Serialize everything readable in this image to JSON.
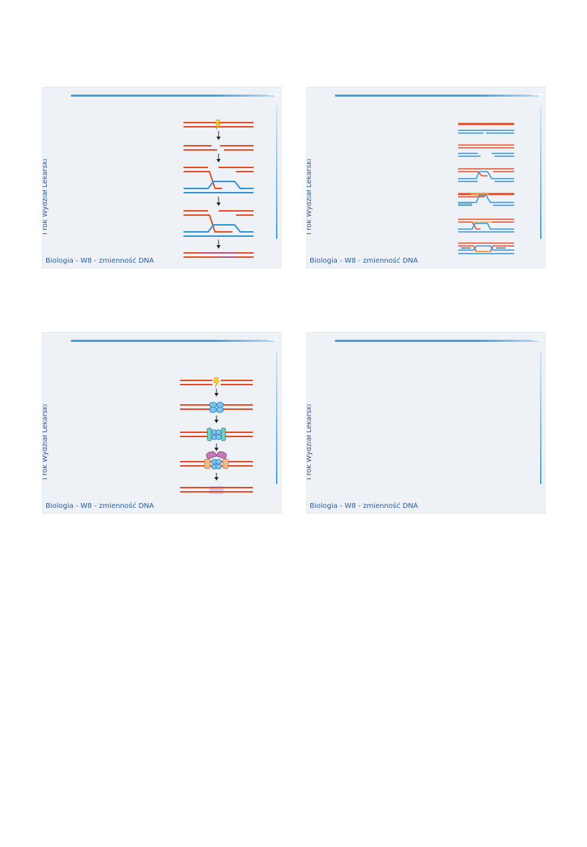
{
  "slides": [
    {
      "side_label": "I rok Wydział Lekarski",
      "footer": "Biologia - W8 - zmienność DNA"
    },
    {
      "side_label": "I rok Wydział Lekarski",
      "footer": "Biologia - W8 - zmienność DNA"
    },
    {
      "side_label": "I rok Wydział Lekarski",
      "footer": "Biologia - W8 - zmienność DNA"
    },
    {
      "side_label": "I rok Wydział Lekarski",
      "footer": "Biologia - W8 - zmienność DNA"
    }
  ],
  "colors": {
    "dna_red": "#e8451c",
    "dna_blue": "#2b8fd6",
    "arrow": "#222222",
    "slide_bg": "#eef2f7",
    "accent": "#3aa0e8"
  },
  "icons": [
    "lightning-icon",
    "down-arrow-icon",
    "protein-complex-icon"
  ]
}
